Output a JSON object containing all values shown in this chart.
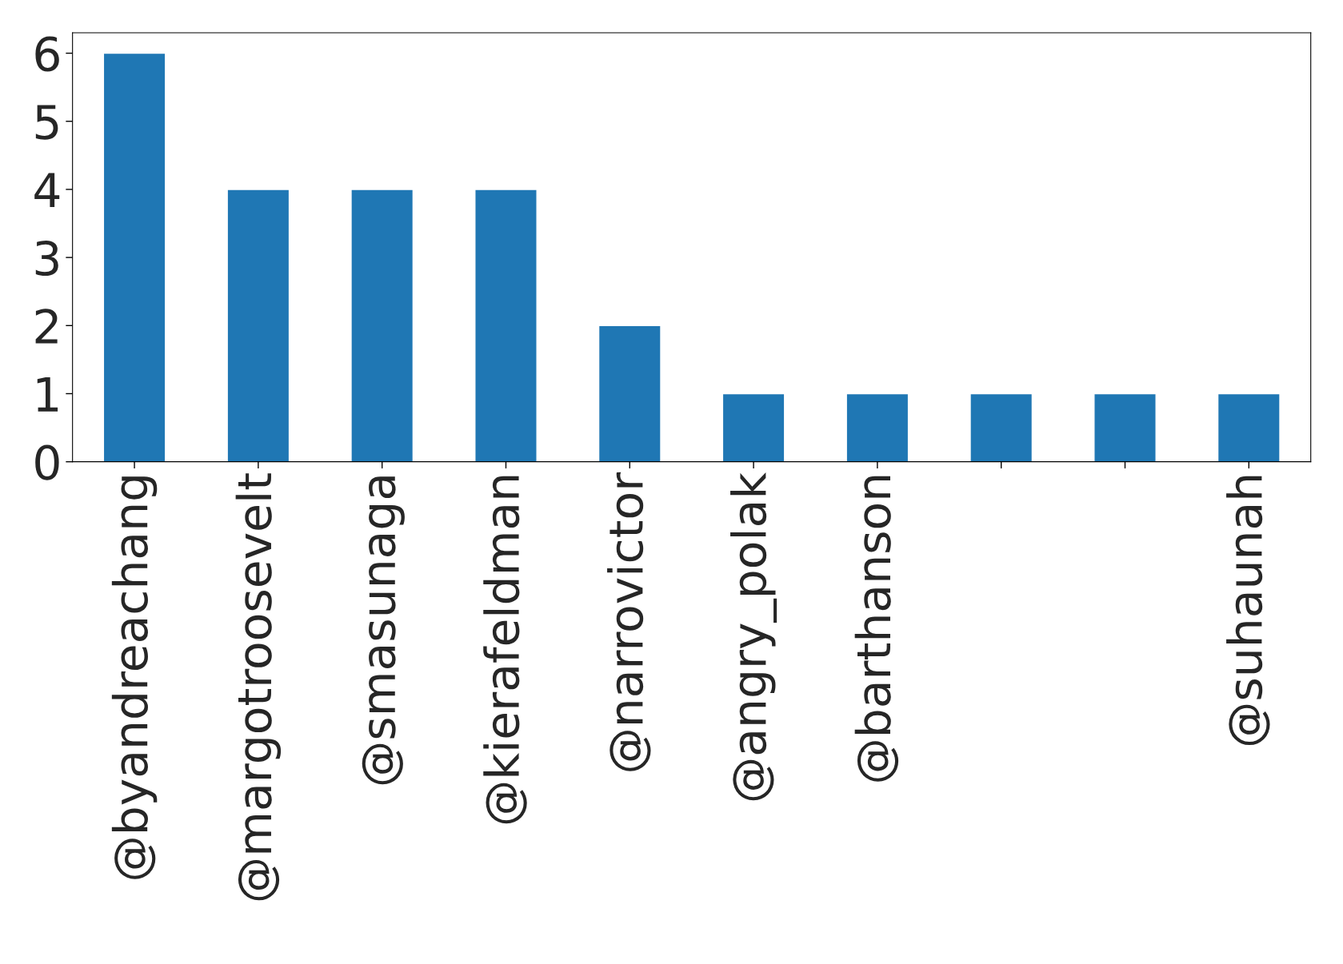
{
  "chart_data": {
    "type": "bar",
    "categories": [
      "@byandreachang",
      "@margotroosevelt",
      "@smasunaga",
      "@kierafeldman",
      "@narrovictor",
      "@angry_polak",
      "@barthanson",
      null,
      null,
      "@suhaunah"
    ],
    "values": [
      6,
      4,
      4,
      4,
      2,
      1,
      1,
      1,
      1,
      1
    ],
    "color": "#1f77b4",
    "ylim": [
      0,
      6.3
    ],
    "yticks": [
      0,
      1,
      2,
      3,
      4,
      5,
      6
    ],
    "grid": false,
    "legend": false
  }
}
